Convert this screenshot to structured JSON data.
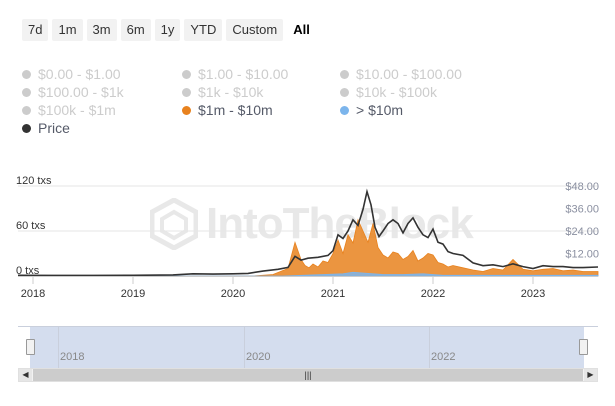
{
  "ranges": [
    "7d",
    "1m",
    "3m",
    "6m",
    "1y",
    "YTD",
    "Custom",
    "All"
  ],
  "active_range": "All",
  "legend": [
    {
      "label": "$0.00 - $1.00",
      "color": "#cccccc",
      "active": false
    },
    {
      "label": "$1.00 - $10.00",
      "color": "#cccccc",
      "active": false
    },
    {
      "label": "$10.00 - $100.00",
      "color": "#cccccc",
      "active": false
    },
    {
      "label": "$100.00 - $1k",
      "color": "#cccccc",
      "active": false
    },
    {
      "label": "$1k - $10k",
      "color": "#cccccc",
      "active": false
    },
    {
      "label": "$10k - $100k",
      "color": "#cccccc",
      "active": false
    },
    {
      "label": "$100k - $1m",
      "color": "#cccccc",
      "active": false
    },
    {
      "label": "$1m - $10m",
      "color": "#e8821e",
      "active": true
    },
    {
      "label": "> $10m",
      "color": "#7cb5ec",
      "active": true
    },
    {
      "label": "Price",
      "color": "#333333",
      "active": true
    }
  ],
  "watermark": "IntoTheBlock",
  "chart_data": {
    "type": "area",
    "title": "",
    "xlabel": "",
    "ylabel_left": "",
    "ylabel_right": "",
    "x_ticks": [
      "2018",
      "2019",
      "2020",
      "2021",
      "2022",
      "2023"
    ],
    "y_left_ticks": [
      "0 txs",
      "60 txs",
      "120 txs"
    ],
    "y_left_range": [
      0,
      120
    ],
    "y_right_ticks": [
      "$12.00",
      "$24.00",
      "$36.00",
      "$48.00"
    ],
    "y_right_range": [
      0,
      48
    ],
    "x_range": [
      2017.85,
      2023.65
    ],
    "series": [
      {
        "name": "$1m - $10m",
        "axis": "left",
        "type": "area",
        "color": "#e8821e",
        "x": [
          2017.85,
          2018.5,
          2019.0,
          2019.4,
          2019.8,
          2020.2,
          2020.4,
          2020.55,
          2020.62,
          2020.68,
          2020.72,
          2020.76,
          2020.8,
          2020.85,
          2020.9,
          2020.95,
          2021.0,
          2021.05,
          2021.1,
          2021.15,
          2021.2,
          2021.25,
          2021.3,
          2021.35,
          2021.4,
          2021.45,
          2021.5,
          2021.55,
          2021.6,
          2021.65,
          2021.7,
          2021.75,
          2021.8,
          2021.85,
          2021.9,
          2021.95,
          2022.0,
          2022.05,
          2022.1,
          2022.15,
          2022.2,
          2022.3,
          2022.4,
          2022.5,
          2022.6,
          2022.7,
          2022.8,
          2022.9,
          2023.0,
          2023.1,
          2023.2,
          2023.3,
          2023.4,
          2023.5,
          2023.65
        ],
        "y": [
          0,
          0,
          0,
          0,
          0,
          0,
          2,
          10,
          45,
          22,
          14,
          11,
          16,
          12,
          20,
          18,
          30,
          48,
          30,
          55,
          44,
          75,
          60,
          45,
          70,
          38,
          28,
          24,
          32,
          30,
          22,
          26,
          34,
          20,
          24,
          30,
          28,
          18,
          16,
          12,
          14,
          11,
          8,
          6,
          10,
          8,
          22,
          9,
          7,
          9,
          10,
          7,
          8,
          6,
          6
        ]
      },
      {
        "name": "> $10m",
        "axis": "left",
        "type": "area",
        "color": "#7cb5ec",
        "x": [
          2017.85,
          2020.5,
          2020.7,
          2020.9,
          2021.1,
          2021.2,
          2021.3,
          2021.4,
          2021.5,
          2021.7,
          2021.9,
          2022.1,
          2022.4,
          2022.8,
          2023.2,
          2023.65
        ],
        "y": [
          0,
          0,
          1,
          2,
          3,
          5,
          4,
          3,
          2,
          2,
          3,
          1,
          1,
          1,
          1,
          1
        ]
      },
      {
        "name": "Price",
        "axis": "right",
        "type": "line",
        "color": "#333333",
        "x": [
          2017.85,
          2018.2,
          2018.6,
          2019.0,
          2019.4,
          2019.6,
          2019.8,
          2020.0,
          2020.15,
          2020.3,
          2020.45,
          2020.55,
          2020.62,
          2020.68,
          2020.75,
          2020.85,
          2020.95,
          2021.0,
          2021.05,
          2021.1,
          2021.15,
          2021.2,
          2021.25,
          2021.3,
          2021.34,
          2021.38,
          2021.42,
          2021.46,
          2021.5,
          2021.55,
          2021.6,
          2021.65,
          2021.7,
          2021.75,
          2021.8,
          2021.85,
          2021.9,
          2021.95,
          2022.0,
          2022.05,
          2022.1,
          2022.15,
          2022.2,
          2022.3,
          2022.4,
          2022.5,
          2022.6,
          2022.7,
          2022.8,
          2022.9,
          2023.0,
          2023.1,
          2023.2,
          2023.3,
          2023.4,
          2023.5,
          2023.65
        ],
        "y": [
          0.4,
          0.3,
          0.3,
          0.4,
          0.6,
          1.2,
          1.0,
          1.2,
          1.4,
          2.6,
          3.6,
          4.6,
          10.5,
          8.5,
          9.5,
          10.0,
          11.0,
          13.5,
          22.0,
          20.0,
          24.0,
          30.0,
          27.0,
          35.5,
          45.0,
          38.0,
          26.0,
          21.0,
          24.0,
          28.0,
          30.0,
          28.0,
          23.0,
          28.0,
          31.0,
          26.0,
          22.0,
          20.5,
          25.0,
          18.0,
          17.0,
          13.0,
          12.0,
          11.0,
          7.0,
          5.5,
          6.0,
          5.0,
          6.5,
          5.0,
          4.0,
          5.5,
          5.0,
          5.0,
          4.5,
          4.5,
          4.8
        ]
      }
    ],
    "grid": true,
    "legend_position": "top-left",
    "navigator": {
      "ticks": [
        "2018",
        "2020",
        "2022"
      ]
    }
  }
}
